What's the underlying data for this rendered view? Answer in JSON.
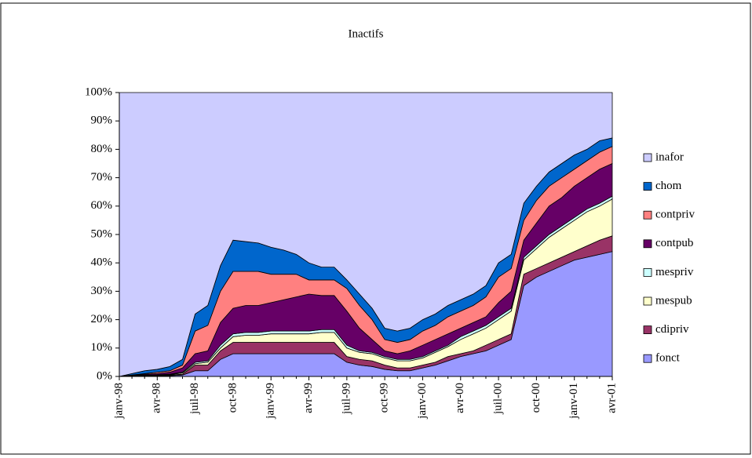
{
  "chart_data": {
    "type": "stacked_area_100",
    "title": "Inactifs",
    "categories": [
      "janv-98",
      null,
      null,
      "avr-98",
      null,
      null,
      "juil-98",
      null,
      null,
      "oct-98",
      null,
      null,
      "janv-99",
      null,
      null,
      "avr-99",
      null,
      null,
      "juil-99",
      null,
      null,
      "oct-99",
      null,
      null,
      "janv-00",
      null,
      null,
      "avr-00",
      null,
      null,
      "juil-00",
      null,
      null,
      "oct-00",
      null,
      null,
      "janv-01",
      null,
      null,
      "avr-01"
    ],
    "series": [
      {
        "name": "fonct",
        "color": "#9999ff",
        "values": [
          0,
          0,
          0.1,
          0.2,
          0.3,
          0.5,
          2,
          2,
          6,
          8,
          8,
          8,
          8,
          8,
          8,
          8,
          8,
          8,
          5,
          4,
          3.5,
          2.5,
          2,
          2,
          3,
          4,
          5.5,
          7,
          8,
          9,
          11,
          13,
          32,
          35,
          37,
          39,
          41,
          42,
          43,
          44
        ]
      },
      {
        "name": "cdipriv",
        "color": "#993366",
        "values": [
          0,
          0.1,
          0.1,
          0.1,
          0.2,
          0.3,
          2,
          2,
          3,
          4,
          4,
          4,
          4,
          4,
          4,
          4,
          4,
          4,
          2,
          2,
          2,
          1.5,
          1,
          1,
          1,
          1,
          1.5,
          1,
          1,
          2,
          2,
          2,
          4,
          3,
          3,
          3,
          3,
          4,
          5,
          5.5
        ]
      },
      {
        "name": "mespub",
        "color": "#ffffcc",
        "values": [
          0,
          0.1,
          0.2,
          0.2,
          0.2,
          0.4,
          0.5,
          1,
          1,
          2,
          2.5,
          2.5,
          3,
          3,
          3,
          3,
          3.5,
          3.5,
          3,
          2.5,
          2.5,
          2.5,
          2.5,
          2.5,
          2.5,
          3.5,
          3.5,
          5,
          6,
          6,
          7,
          8,
          5,
          7,
          9,
          10,
          11,
          12,
          12,
          13
        ]
      },
      {
        "name": "mespriv",
        "color": "#ccffff",
        "values": [
          0,
          0.1,
          0.1,
          0.1,
          0.1,
          0.3,
          0.5,
          0.5,
          1,
          1,
          1,
          1,
          1,
          1,
          1,
          1,
          1,
          1,
          1,
          0.5,
          0.5,
          0.5,
          0.5,
          0.5,
          0.5,
          0.5,
          0.5,
          1,
          1,
          1,
          1,
          1,
          1,
          1,
          1,
          1,
          1,
          1,
          1,
          1
        ]
      },
      {
        "name": "contpub",
        "color": "#660066",
        "values": [
          0,
          0.2,
          0.3,
          0.4,
          0.7,
          1.5,
          3,
          3.5,
          8,
          9,
          9.5,
          9.5,
          10,
          11,
          12,
          13,
          12,
          12,
          12,
          8,
          4.5,
          2,
          2,
          3,
          4,
          4,
          4,
          3,
          3,
          3,
          5,
          6,
          6,
          8,
          10,
          10,
          11,
          11,
          12,
          11.5
        ]
      },
      {
        "name": "contpriv",
        "color": "#ff8080",
        "values": [
          0,
          0,
          0.2,
          0.5,
          0.5,
          1,
          8,
          9,
          11,
          13,
          12,
          12,
          10,
          9,
          8,
          5,
          5.5,
          5.5,
          8,
          8,
          7,
          4,
          4,
          4,
          5,
          5,
          6,
          6,
          6,
          7,
          9,
          8,
          7,
          8,
          7,
          7,
          6,
          6,
          6,
          6
        ]
      },
      {
        "name": "chom",
        "color": "#0066cc",
        "values": [
          0,
          0.5,
          1,
          1,
          1.5,
          2,
          6,
          7,
          9,
          11,
          10.5,
          10,
          9.5,
          8.5,
          7,
          6,
          4.5,
          4.5,
          3,
          4,
          4,
          4,
          4,
          4,
          4,
          4,
          4,
          4,
          4,
          4,
          5,
          5,
          6,
          5,
          5,
          5,
          5,
          4,
          4,
          3
        ]
      },
      {
        "name": "inafor",
        "color": "#ccccff",
        "values": [
          100,
          99,
          98,
          97.5,
          96.5,
          94,
          78,
          75,
          61,
          52,
          52.5,
          53,
          54.5,
          55.5,
          57,
          60,
          61.5,
          61.5,
          66,
          71,
          76,
          83,
          84,
          83,
          80,
          78,
          75,
          73,
          71,
          68,
          60,
          57,
          39,
          33,
          28,
          25,
          22,
          20,
          17,
          16
        ]
      }
    ],
    "ylim": [
      0,
      100
    ],
    "yticks": [
      {
        "value": 0,
        "label": "0%"
      },
      {
        "value": 10,
        "label": "10%"
      },
      {
        "value": 20,
        "label": "20%"
      },
      {
        "value": 30,
        "label": "30%"
      },
      {
        "value": 40,
        "label": "40%"
      },
      {
        "value": 50,
        "label": "50%"
      },
      {
        "value": 60,
        "label": "60%"
      },
      {
        "value": 70,
        "label": "70%"
      },
      {
        "value": 80,
        "label": "80%"
      },
      {
        "value": 90,
        "label": "90%"
      },
      {
        "value": 100,
        "label": "100%"
      }
    ],
    "legend": "right"
  }
}
